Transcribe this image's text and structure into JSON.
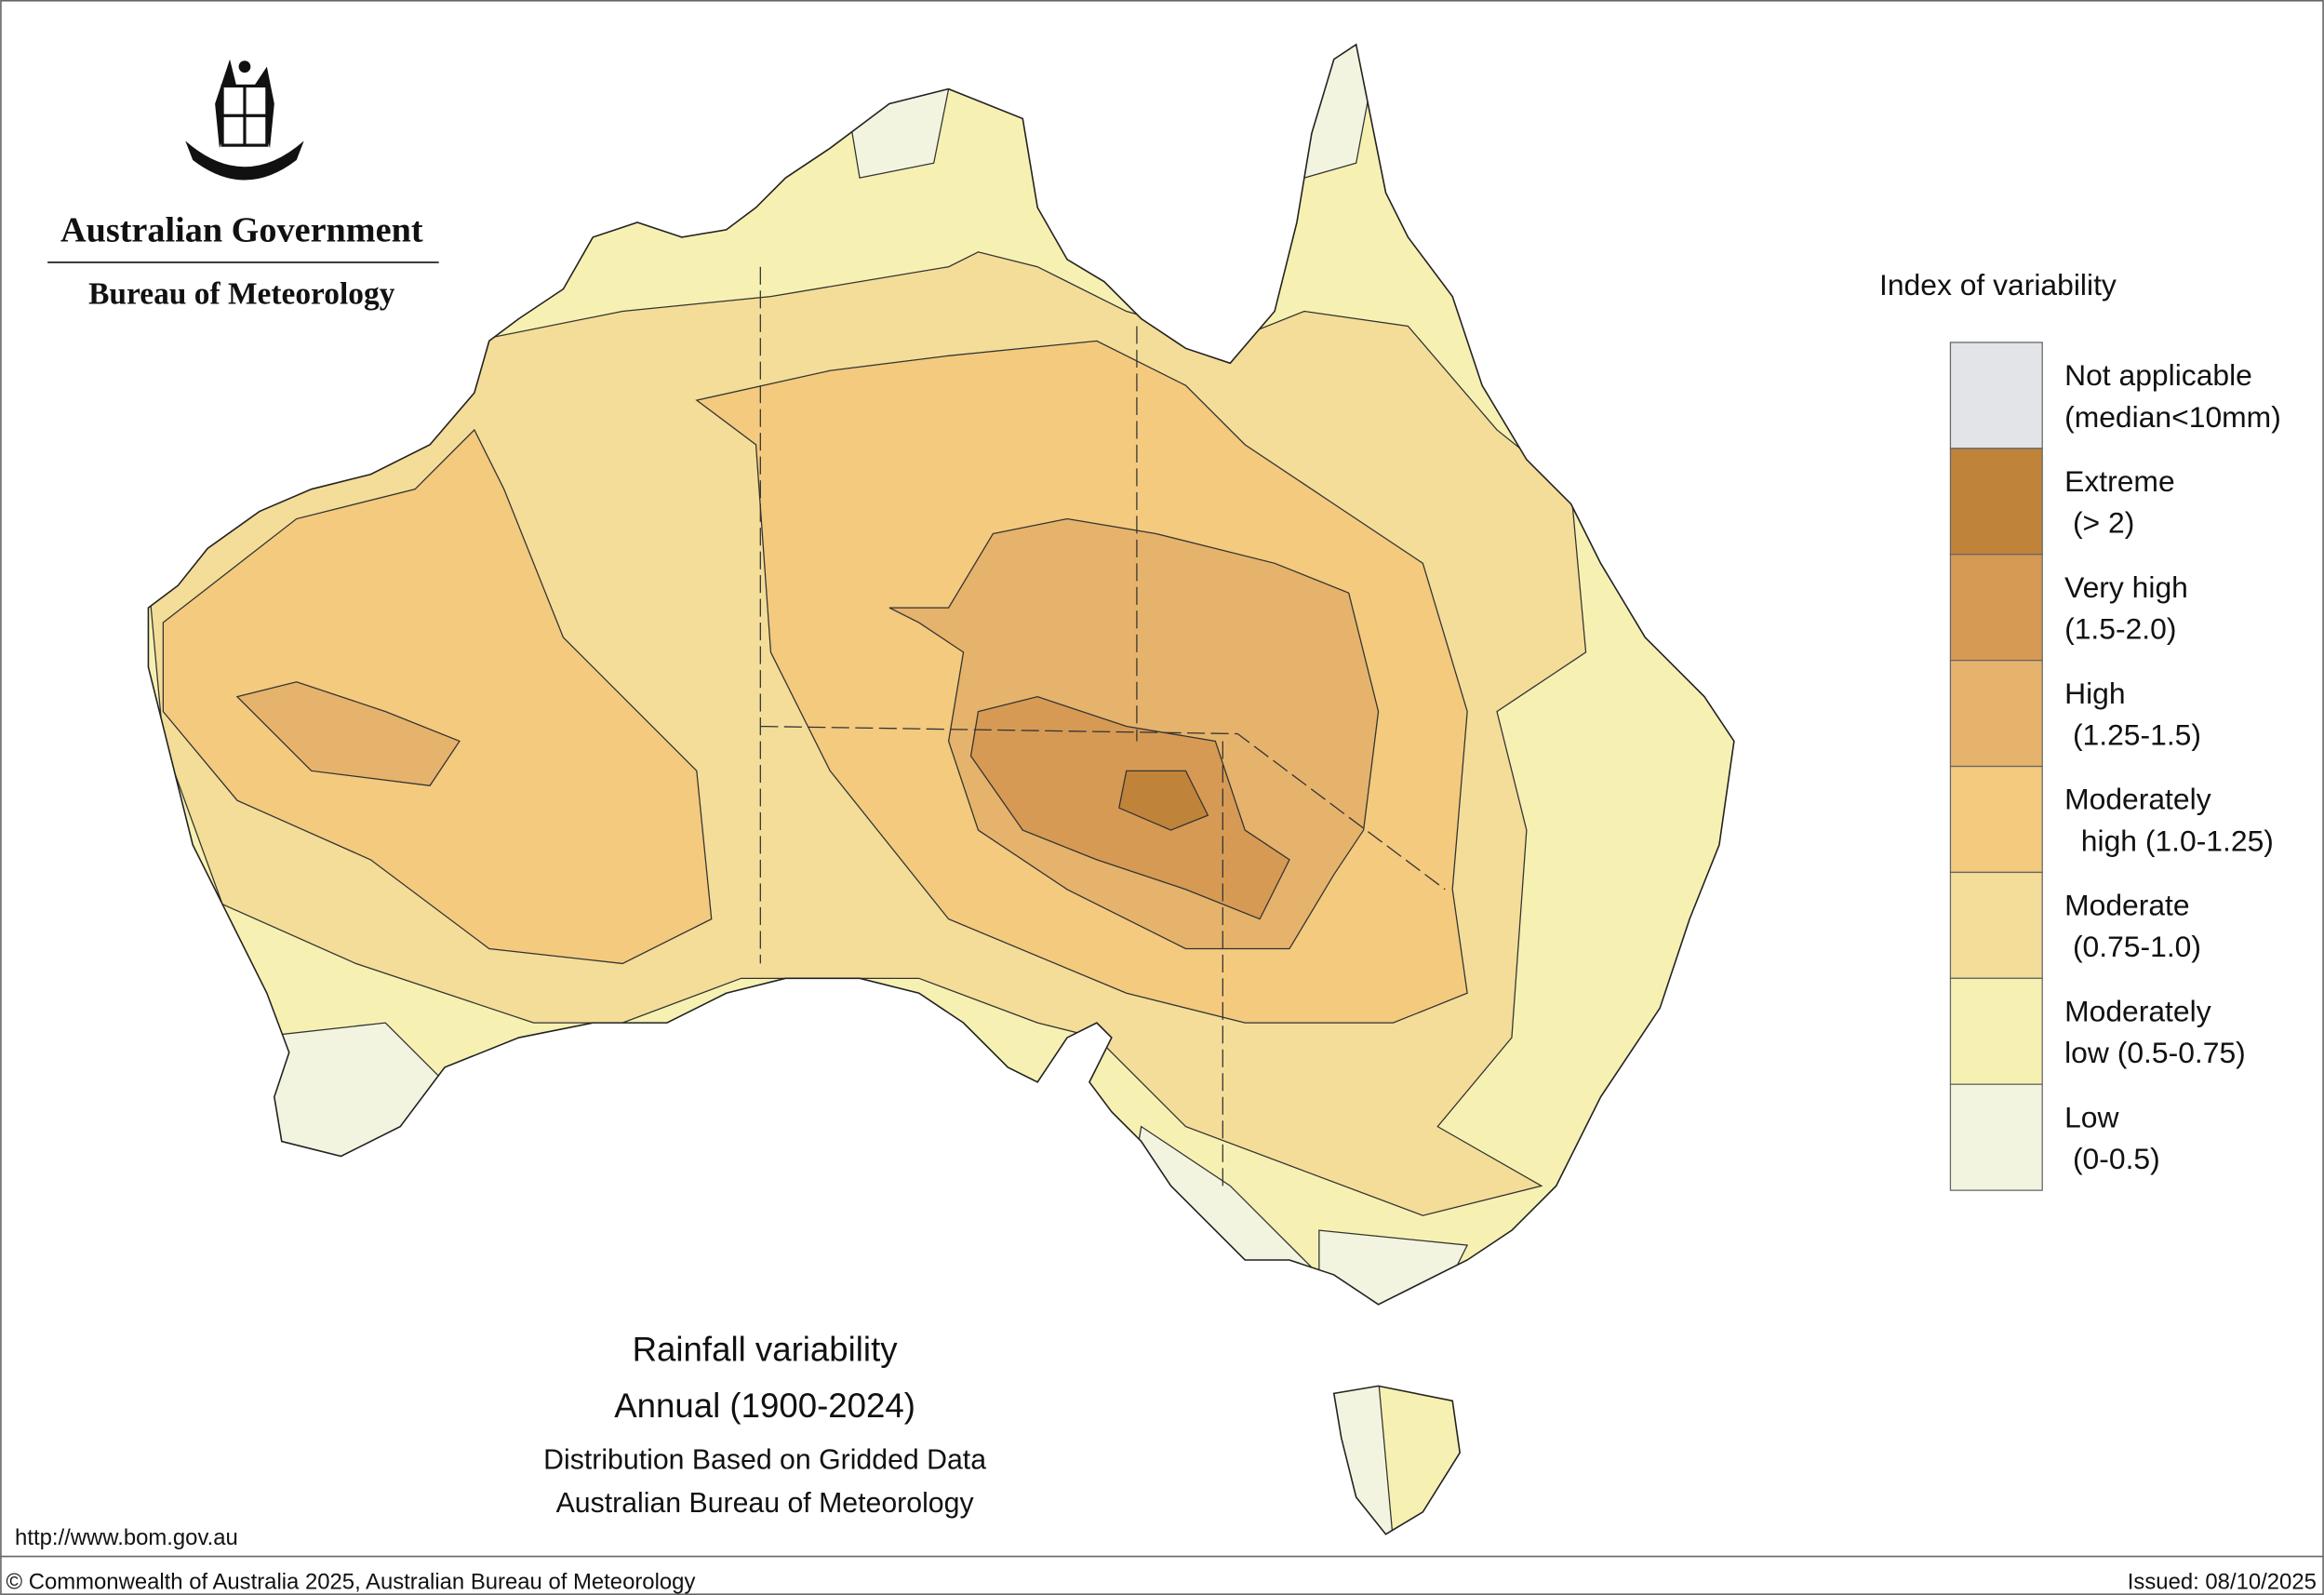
{
  "header": {
    "organisation": "Australian Government",
    "agency": "Bureau of Meteorology"
  },
  "legend": {
    "title": "Index of variability",
    "items": [
      {
        "lines": [
          "Not applicable",
          "(median<10mm)"
        ],
        "color": "#e2e4e8"
      },
      {
        "lines": [
          "Extreme",
          " (> 2)"
        ],
        "color": "#c0833a"
      },
      {
        "lines": [
          "Very high",
          "(1.5-2.0)"
        ],
        "color": "#d69a54"
      },
      {
        "lines": [
          "High",
          " (1.25-1.5)"
        ],
        "color": "#e6b36c"
      },
      {
        "lines": [
          "Moderately",
          "  high (1.0-1.25)"
        ],
        "color": "#f3ca7e"
      },
      {
        "lines": [
          "Moderate",
          " (0.75-1.0)"
        ],
        "color": "#f3dd98"
      },
      {
        "lines": [
          "Moderately",
          "low (0.5-0.75)"
        ],
        "color": "#f6f1b2"
      },
      {
        "lines": [
          "Low",
          " (0-0.5)"
        ],
        "color": "#f3f4e0"
      }
    ]
  },
  "map_title": [
    "Rainfall variability",
    "Annual (1900-2024)",
    "Distribution Based on Gridded Data",
    "Australian Bureau of Meteorology"
  ],
  "footer": {
    "url": "http://www.bom.gov.au",
    "copyright": "© Commonwealth of Australia 2025, Australian Bureau of Meteorology",
    "issued": "Issued: 08/10/2025"
  }
}
